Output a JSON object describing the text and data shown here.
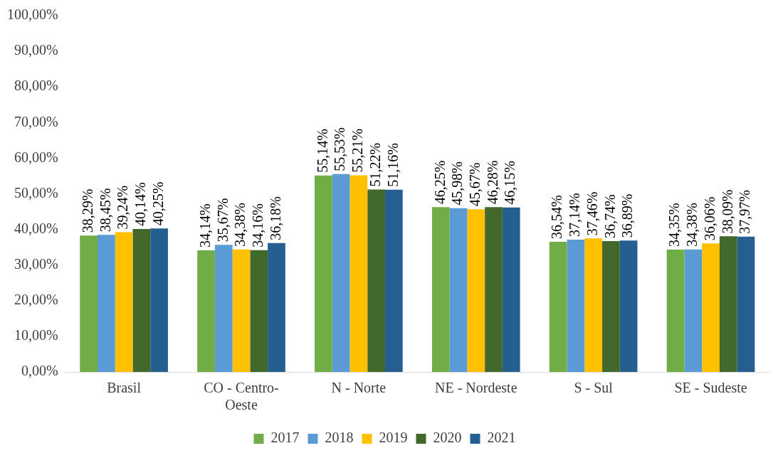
{
  "chart_data": {
    "type": "bar",
    "categories": [
      "Brasil",
      "CO - Centro-Oeste",
      "N - Norte",
      "NE - Nordeste",
      "S - Sul",
      "SE - Sudeste"
    ],
    "series": [
      {
        "name": "2017",
        "color": "#70ad47",
        "values": [
          38.29,
          34.14,
          55.14,
          46.25,
          36.54,
          34.35
        ],
        "value_labels": [
          "38,29%",
          "34,14%",
          "55,14%",
          "46,25%",
          "36,54%",
          "34,35%"
        ]
      },
      {
        "name": "2018",
        "color": "#5b9bd5",
        "values": [
          38.45,
          35.67,
          55.53,
          45.98,
          37.14,
          34.38
        ],
        "value_labels": [
          "38,45%",
          "35,67%",
          "55,53%",
          "45,98%",
          "37,14%",
          "34,38%"
        ]
      },
      {
        "name": "2019",
        "color": "#ffc000",
        "values": [
          39.24,
          34.38,
          55.21,
          45.67,
          37.46,
          36.06
        ],
        "value_labels": [
          "39,24%",
          "34,38%",
          "55,21%",
          "45,67%",
          "37,46%",
          "36,06%"
        ]
      },
      {
        "name": "2020",
        "color": "#43682b",
        "values": [
          40.14,
          34.16,
          51.22,
          46.28,
          36.74,
          38.09
        ],
        "value_labels": [
          "40,14%",
          "34,16%",
          "51,22%",
          "46,28%",
          "36,74%",
          "38,09%"
        ]
      },
      {
        "name": "2021",
        "color": "#255e91",
        "values": [
          40.25,
          36.18,
          51.16,
          46.15,
          36.89,
          37.97
        ],
        "value_labels": [
          "40,25%",
          "36,18%",
          "51,16%",
          "46,15%",
          "36,89%",
          "37,97%"
        ]
      }
    ],
    "ylim": [
      0,
      100
    ],
    "yticks": [
      {
        "value": 0,
        "label": "0,00%"
      },
      {
        "value": 10,
        "label": "10,00%"
      },
      {
        "value": 20,
        "label": "20,00%"
      },
      {
        "value": 30,
        "label": "30,00%"
      },
      {
        "value": 40,
        "label": "40,00%"
      },
      {
        "value": 50,
        "label": "50,00%"
      },
      {
        "value": 60,
        "label": "60,00%"
      },
      {
        "value": 70,
        "label": "70,00%"
      },
      {
        "value": 80,
        "label": "80,00%"
      },
      {
        "value": 90,
        "label": "90,00%"
      },
      {
        "value": 100,
        "label": "100,00%"
      }
    ],
    "grid": false,
    "legend": "bottom"
  }
}
